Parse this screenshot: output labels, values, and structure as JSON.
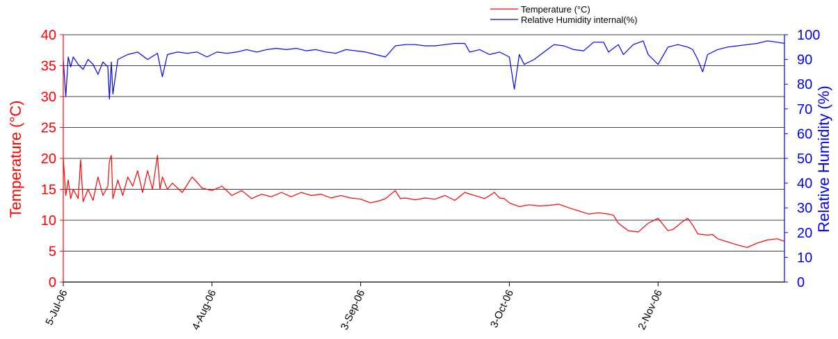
{
  "chart_data": {
    "type": "line",
    "title": "",
    "legend": {
      "position": "top-right",
      "entries": [
        {
          "label": "Temperature (°C)",
          "color": "#ff0000"
        },
        {
          "label": "Relative Humidity internal(%)",
          "color": "#0000ff"
        }
      ]
    },
    "y_left": {
      "label": "Temperature (°C)",
      "min": 0,
      "max": 40,
      "ticks": [
        "0",
        "5",
        "10",
        "15",
        "20",
        "25",
        "30",
        "35",
        "40"
      ],
      "color": "#ff0000"
    },
    "y_right": {
      "label": "Relative Humidity (%)",
      "min": 0,
      "max": 100,
      "ticks": [
        "0",
        "10",
        "20",
        "30",
        "40",
        "50",
        "60",
        "70",
        "80",
        "90",
        "100"
      ],
      "color": "#0000ff"
    },
    "x": {
      "tick_labels": [
        "5-Jul-06",
        "4-Aug-06",
        "3-Sep-06",
        "3-Oct-06",
        "2-Nov-06"
      ],
      "tick_days": [
        0,
        30,
        60,
        90,
        120
      ],
      "range_days": [
        0,
        145.5
      ]
    },
    "grid": "horizontal",
    "series": [
      {
        "name": "Temperature (°C)",
        "axis": "left",
        "color": "#ff0000",
        "points": [
          [
            0,
            20
          ],
          [
            0.5,
            14
          ],
          [
            1,
            16.5
          ],
          [
            1.5,
            13.5
          ],
          [
            2,
            15
          ],
          [
            3,
            13.5
          ],
          [
            3.5,
            19.8
          ],
          [
            4,
            13
          ],
          [
            5,
            15
          ],
          [
            6,
            13.2
          ],
          [
            7,
            17
          ],
          [
            8,
            14
          ],
          [
            9,
            15.5
          ],
          [
            9.3,
            19.5
          ],
          [
            9.7,
            20.5
          ],
          [
            10,
            13.5
          ],
          [
            11,
            16.5
          ],
          [
            12,
            14
          ],
          [
            13,
            17
          ],
          [
            14,
            15.5
          ],
          [
            15,
            18
          ],
          [
            16,
            14.5
          ],
          [
            17,
            18
          ],
          [
            18,
            15
          ],
          [
            19,
            20.5
          ],
          [
            19.5,
            15
          ],
          [
            20,
            17
          ],
          [
            21,
            15
          ],
          [
            22,
            16
          ],
          [
            24,
            14.5
          ],
          [
            26,
            17
          ],
          [
            28,
            15.2
          ],
          [
            30,
            14.8
          ],
          [
            32,
            15.5
          ],
          [
            34,
            14
          ],
          [
            36,
            14.8
          ],
          [
            38,
            13.5
          ],
          [
            40,
            14.2
          ],
          [
            42,
            13.8
          ],
          [
            44,
            14.5
          ],
          [
            46,
            13.8
          ],
          [
            48,
            14.5
          ],
          [
            50,
            14
          ],
          [
            52,
            14.2
          ],
          [
            54,
            13.6
          ],
          [
            56,
            14
          ],
          [
            58,
            13.6
          ],
          [
            60,
            13.4
          ],
          [
            62,
            12.8
          ],
          [
            64,
            13.2
          ],
          [
            65,
            13.5
          ],
          [
            67,
            14.8
          ],
          [
            68,
            13.5
          ],
          [
            69,
            13.6
          ],
          [
            71,
            13.3
          ],
          [
            73,
            13.6
          ],
          [
            75,
            13.4
          ],
          [
            77,
            14
          ],
          [
            79,
            13.2
          ],
          [
            81,
            14.5
          ],
          [
            83,
            14
          ],
          [
            85,
            13.5
          ],
          [
            87,
            14.5
          ],
          [
            88,
            13.6
          ],
          [
            89,
            13.5
          ],
          [
            90,
            12.8
          ],
          [
            92,
            12.2
          ],
          [
            94,
            12.5
          ],
          [
            96,
            12.3
          ],
          [
            98,
            12.4
          ],
          [
            100,
            12.6
          ],
          [
            102,
            12
          ],
          [
            104,
            11.5
          ],
          [
            106,
            11
          ],
          [
            108,
            11.2
          ],
          [
            110,
            11
          ],
          [
            111,
            10.8
          ],
          [
            112,
            9.5
          ],
          [
            114,
            8.3
          ],
          [
            116,
            8.1
          ],
          [
            118,
            9.5
          ],
          [
            120,
            10.3
          ],
          [
            121,
            9.3
          ],
          [
            122,
            8.3
          ],
          [
            123,
            8.5
          ],
          [
            125,
            9.8
          ],
          [
            126,
            10.3
          ],
          [
            127,
            9.2
          ],
          [
            128,
            7.8
          ],
          [
            130,
            7.6
          ],
          [
            131,
            7.7
          ],
          [
            132,
            7
          ],
          [
            134,
            6.5
          ],
          [
            136,
            6
          ],
          [
            138,
            5.6
          ],
          [
            140,
            6.3
          ],
          [
            142,
            6.8
          ],
          [
            144,
            7
          ],
          [
            145.5,
            6.6
          ]
        ]
      },
      {
        "name": "Relative Humidity internal(%)",
        "axis": "right",
        "color": "#0000ff",
        "points": [
          [
            0,
            90
          ],
          [
            0.5,
            75
          ],
          [
            1,
            91
          ],
          [
            1.5,
            87
          ],
          [
            2,
            91
          ],
          [
            3,
            88
          ],
          [
            4,
            86
          ],
          [
            5,
            90
          ],
          [
            6,
            88
          ],
          [
            7,
            84
          ],
          [
            8,
            89
          ],
          [
            9,
            87
          ],
          [
            9.3,
            74
          ],
          [
            9.7,
            89
          ],
          [
            10,
            76
          ],
          [
            11,
            90
          ],
          [
            12,
            91
          ],
          [
            13,
            92
          ],
          [
            15,
            93
          ],
          [
            17,
            90
          ],
          [
            19,
            92.5
          ],
          [
            20,
            83
          ],
          [
            21,
            92
          ],
          [
            23,
            93
          ],
          [
            25,
            92.5
          ],
          [
            27,
            93
          ],
          [
            29,
            91
          ],
          [
            31,
            93
          ],
          [
            33,
            92.5
          ],
          [
            35,
            93
          ],
          [
            37,
            94
          ],
          [
            39,
            93
          ],
          [
            41,
            94
          ],
          [
            43,
            94.5
          ],
          [
            45,
            94
          ],
          [
            47,
            94.5
          ],
          [
            49,
            93.5
          ],
          [
            51,
            94
          ],
          [
            53,
            93
          ],
          [
            55,
            92.5
          ],
          [
            57,
            94
          ],
          [
            59,
            93.5
          ],
          [
            61,
            93
          ],
          [
            63,
            92
          ],
          [
            65,
            91
          ],
          [
            67,
            95.5
          ],
          [
            69,
            96
          ],
          [
            71,
            96
          ],
          [
            73,
            95.5
          ],
          [
            75,
            95.5
          ],
          [
            77,
            96
          ],
          [
            79,
            96.5
          ],
          [
            81,
            96.5
          ],
          [
            82,
            93
          ],
          [
            84,
            94
          ],
          [
            86,
            92
          ],
          [
            88,
            93
          ],
          [
            90,
            91
          ],
          [
            91,
            78
          ],
          [
            92,
            92
          ],
          [
            93,
            88
          ],
          [
            95,
            90
          ],
          [
            97,
            93
          ],
          [
            99,
            96
          ],
          [
            101,
            95.5
          ],
          [
            103,
            94
          ],
          [
            105,
            93.5
          ],
          [
            107,
            97
          ],
          [
            109,
            97
          ],
          [
            110,
            93
          ],
          [
            112,
            96
          ],
          [
            113,
            92
          ],
          [
            115,
            96
          ],
          [
            117,
            97.5
          ],
          [
            118,
            92
          ],
          [
            120,
            88
          ],
          [
            122,
            95
          ],
          [
            124,
            96
          ],
          [
            126,
            95
          ],
          [
            127,
            94
          ],
          [
            128,
            90
          ],
          [
            129,
            85
          ],
          [
            130,
            92
          ],
          [
            132,
            94
          ],
          [
            134,
            95
          ],
          [
            136,
            95.5
          ],
          [
            138,
            96
          ],
          [
            140,
            96.5
          ],
          [
            142,
            97.5
          ],
          [
            144,
            97
          ],
          [
            145.5,
            96.5
          ]
        ]
      }
    ]
  }
}
